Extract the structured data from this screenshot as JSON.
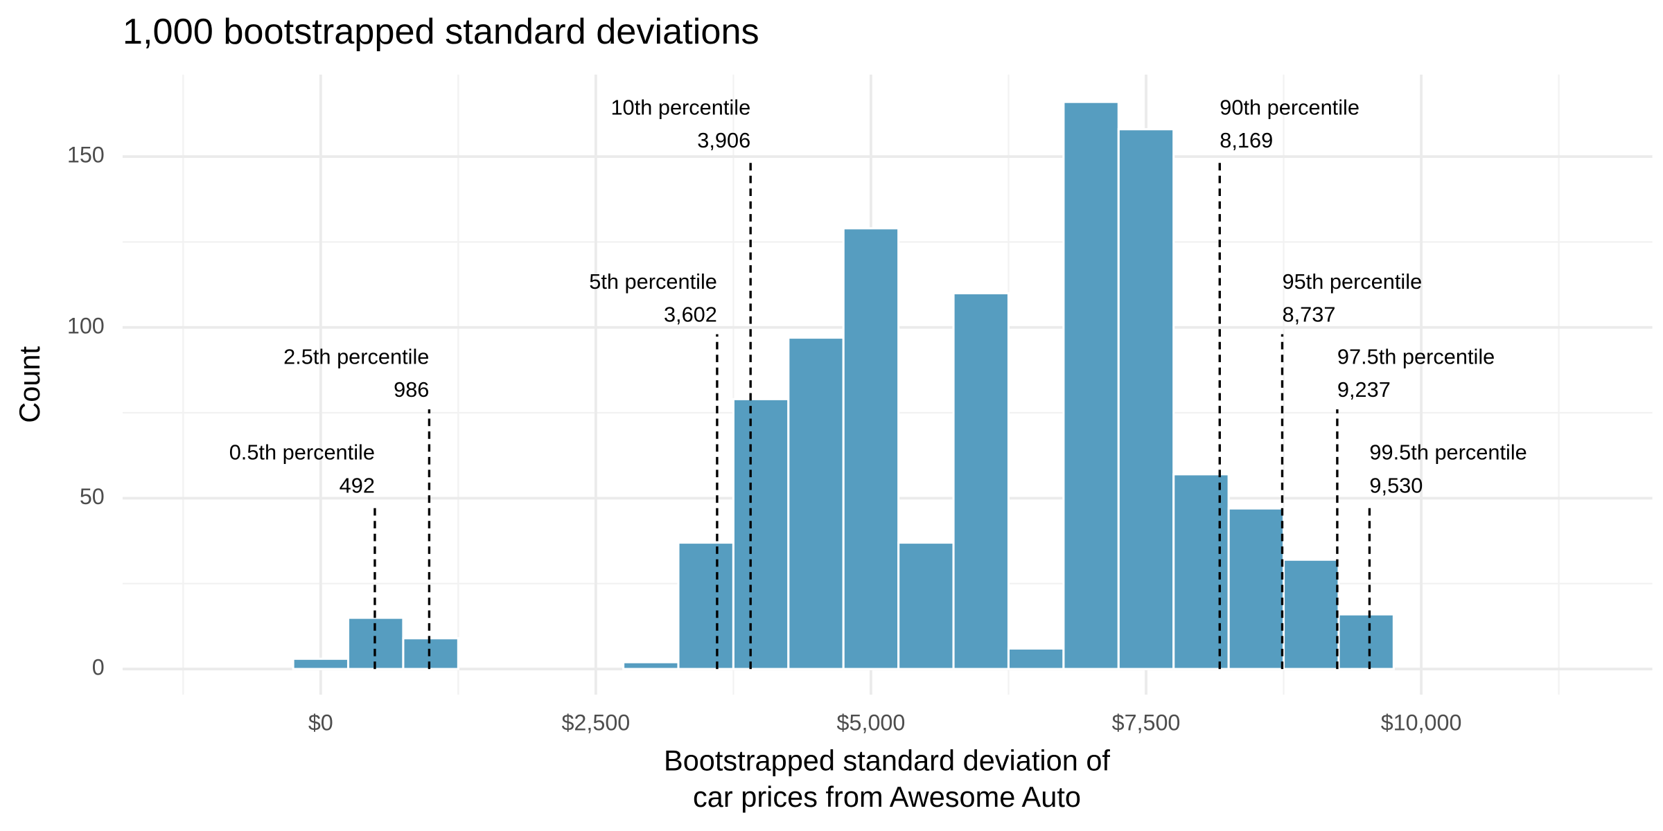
{
  "chart_data": {
    "type": "histogram",
    "title": "1,000 bootstrapped standard deviations",
    "xlabel": [
      "Bootstrapped standard deviation of",
      "car prices from Awesome Auto"
    ],
    "ylabel": "Count",
    "bins": [
      -250,
      250,
      750,
      1250,
      1750,
      2250,
      2750,
      3250,
      3750,
      4250,
      4750,
      5250,
      5750,
      6250,
      6750,
      7250,
      7750,
      8250,
      8750,
      9250,
      9750
    ],
    "counts": [
      3,
      15,
      9,
      0,
      0,
      0,
      2,
      37,
      79,
      97,
      129,
      37,
      110,
      6,
      166,
      158,
      57,
      47,
      32,
      16
    ],
    "color": "#569dc0",
    "xlim": [
      -1800,
      12100
    ],
    "ylim": [
      -7.5,
      174
    ],
    "xticks": [
      {
        "value": 0,
        "label": "$0"
      },
      {
        "value": 2500,
        "label": "$2,500"
      },
      {
        "value": 5000,
        "label": "$5,000"
      },
      {
        "value": 7500,
        "label": "$7,500"
      },
      {
        "value": 10000,
        "label": "$10,000"
      }
    ],
    "yticks": [
      0,
      50,
      100,
      150
    ],
    "grid": true,
    "percentiles": [
      {
        "name": "0.5th percentile",
        "value": 492
      },
      {
        "name": "2.5th percentile",
        "value": 986
      },
      {
        "name": "5th percentile",
        "value": {
          "value": 3602,
          "label": "3,602"
        }
      },
      {
        "name": "10th percentile",
        "value": {
          "value": 3906,
          "label": "3,906"
        }
      },
      {
        "name": "90th percentile",
        "value": {
          "value": 8169,
          "label": "8,169"
        }
      },
      {
        "name": "95th percentile",
        "value": {
          "value": 8737,
          "label": "8,737"
        }
      },
      {
        "name": "97.5th percentile",
        "value": {
          "value": 9237,
          "label": "9,237"
        }
      },
      {
        "name": "99.5th percentile",
        "value": {
          "value": 9530,
          "label": "9,530"
        }
      }
    ]
  }
}
